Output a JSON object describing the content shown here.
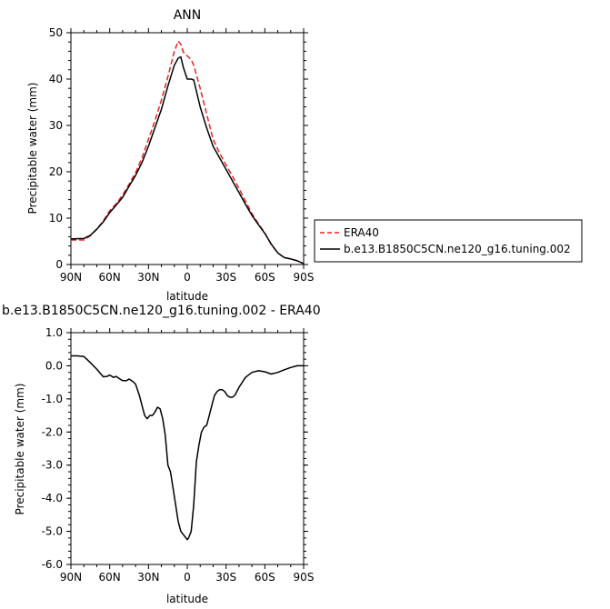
{
  "chart_data": [
    {
      "type": "line",
      "title": "ANN",
      "xlabel": "latitude",
      "ylabel": "Precipitable water (mm)",
      "xlim": [
        90,
        -90
      ],
      "ylim": [
        0,
        50
      ],
      "x_ticks": [
        90,
        60,
        30,
        0,
        -30,
        -60,
        -90
      ],
      "x_tick_labels": [
        "90N",
        "60N",
        "30N",
        "0",
        "30S",
        "60S",
        "90S"
      ],
      "y_ticks": [
        0,
        10,
        20,
        30,
        40,
        50
      ],
      "y_tick_labels": [
        "0",
        "10",
        "20",
        "30",
        "40",
        "50"
      ],
      "legend_position": "right",
      "series": [
        {
          "name": "ERA40",
          "color": "#e8221e",
          "dash": "dashed",
          "x": [
            90,
            80,
            75,
            70,
            65,
            60,
            55,
            50,
            45,
            40,
            35,
            30,
            25,
            20,
            15,
            10,
            7,
            5,
            3,
            0,
            -3,
            -5,
            -10,
            -15,
            -20,
            -25,
            -30,
            -35,
            -40,
            -45,
            -50,
            -55,
            -60,
            -65,
            -70,
            -75,
            -80,
            -85,
            -90
          ],
          "y": [
            5.3,
            5.3,
            6.2,
            7.6,
            9.4,
            11.6,
            13.1,
            15.0,
            17.3,
            19.8,
            23.0,
            27.0,
            31.0,
            35.5,
            40.5,
            46.0,
            48.2,
            47.5,
            45.8,
            45.0,
            44.2,
            43.0,
            38.0,
            32.5,
            27.0,
            24.0,
            21.5,
            19.0,
            16.4,
            13.7,
            11.0,
            8.8,
            6.8,
            4.3,
            2.5,
            1.5,
            1.2,
            0.8,
            0.2
          ]
        },
        {
          "name": "b.e13.B1850C5CN.ne120_g16.tuning.002",
          "color": "#000000",
          "dash": "solid",
          "x": [
            90,
            80,
            75,
            70,
            65,
            60,
            55,
            50,
            45,
            40,
            35,
            30,
            25,
            20,
            15,
            10,
            7,
            5,
            3,
            0,
            -3,
            -5,
            -10,
            -15,
            -20,
            -25,
            -30,
            -35,
            -40,
            -45,
            -50,
            -55,
            -60,
            -65,
            -70,
            -75,
            -80,
            -85,
            -90
          ],
          "y": [
            5.5,
            5.6,
            6.3,
            7.6,
            9.2,
            11.2,
            12.8,
            14.5,
            16.9,
            19.2,
            22.0,
            25.5,
            29.5,
            33.5,
            38.5,
            43.0,
            44.5,
            44.8,
            42.5,
            40.0,
            40.0,
            39.8,
            34.0,
            29.5,
            25.5,
            23.0,
            20.5,
            18.0,
            15.5,
            13.0,
            10.6,
            8.6,
            6.7,
            4.4,
            2.5,
            1.5,
            1.2,
            0.8,
            0.2
          ]
        }
      ]
    },
    {
      "type": "line",
      "title": "b.e13.B1850C5CN.ne120_g16.tuning.002 - ERA40",
      "xlabel": "latitude",
      "ylabel": "Precipitable water (mm)",
      "xlim": [
        90,
        -90
      ],
      "ylim": [
        -6,
        1
      ],
      "x_ticks": [
        90,
        60,
        30,
        0,
        -30,
        -60,
        -90
      ],
      "x_tick_labels": [
        "90N",
        "60N",
        "30N",
        "0",
        "30S",
        "60S",
        "90S"
      ],
      "y_ticks": [
        -6,
        -5,
        -4,
        -3,
        -2,
        -1,
        0,
        1
      ],
      "y_tick_labels": [
        "-6.0",
        "-5.0",
        "-4.0",
        "-3.0",
        "-2.0",
        "-1.0",
        "0.0",
        "1.0"
      ],
      "series": [
        {
          "name": "b.e13.B1850C5CN.ne120_g16.tuning.002 - ERA40",
          "color": "#000000",
          "dash": "solid",
          "x": [
            90,
            85,
            80,
            75,
            70,
            65,
            62,
            60,
            57,
            55,
            52,
            50,
            47,
            45,
            42,
            40,
            37,
            35,
            33,
            31,
            29,
            27,
            25,
            23,
            21,
            19,
            17,
            15,
            13,
            11,
            9,
            7,
            5,
            3,
            1,
            0,
            -1,
            -3,
            -5,
            -7,
            -9,
            -11,
            -13,
            -15,
            -17,
            -19,
            -21,
            -23,
            -25,
            -27,
            -29,
            -31,
            -33,
            -35,
            -37,
            -40,
            -45,
            -50,
            -55,
            -60,
            -65,
            -70,
            -75,
            -80,
            -85,
            -90
          ],
          "y": [
            0.3,
            0.3,
            0.28,
            0.1,
            -0.1,
            -0.33,
            -0.32,
            -0.28,
            -0.35,
            -0.32,
            -0.4,
            -0.45,
            -0.45,
            -0.4,
            -0.48,
            -0.55,
            -0.9,
            -1.2,
            -1.5,
            -1.6,
            -1.5,
            -1.5,
            -1.4,
            -1.25,
            -1.3,
            -1.6,
            -2.1,
            -3.0,
            -3.2,
            -3.7,
            -4.2,
            -4.7,
            -5.0,
            -5.1,
            -5.2,
            -5.25,
            -5.2,
            -5.0,
            -4.2,
            -2.9,
            -2.4,
            -2.0,
            -1.85,
            -1.8,
            -1.5,
            -1.2,
            -0.9,
            -0.78,
            -0.72,
            -0.72,
            -0.78,
            -0.9,
            -0.95,
            -0.95,
            -0.88,
            -0.65,
            -0.35,
            -0.2,
            -0.15,
            -0.18,
            -0.25,
            -0.2,
            -0.12,
            -0.05,
            0.0,
            0.0
          ]
        }
      ]
    }
  ]
}
